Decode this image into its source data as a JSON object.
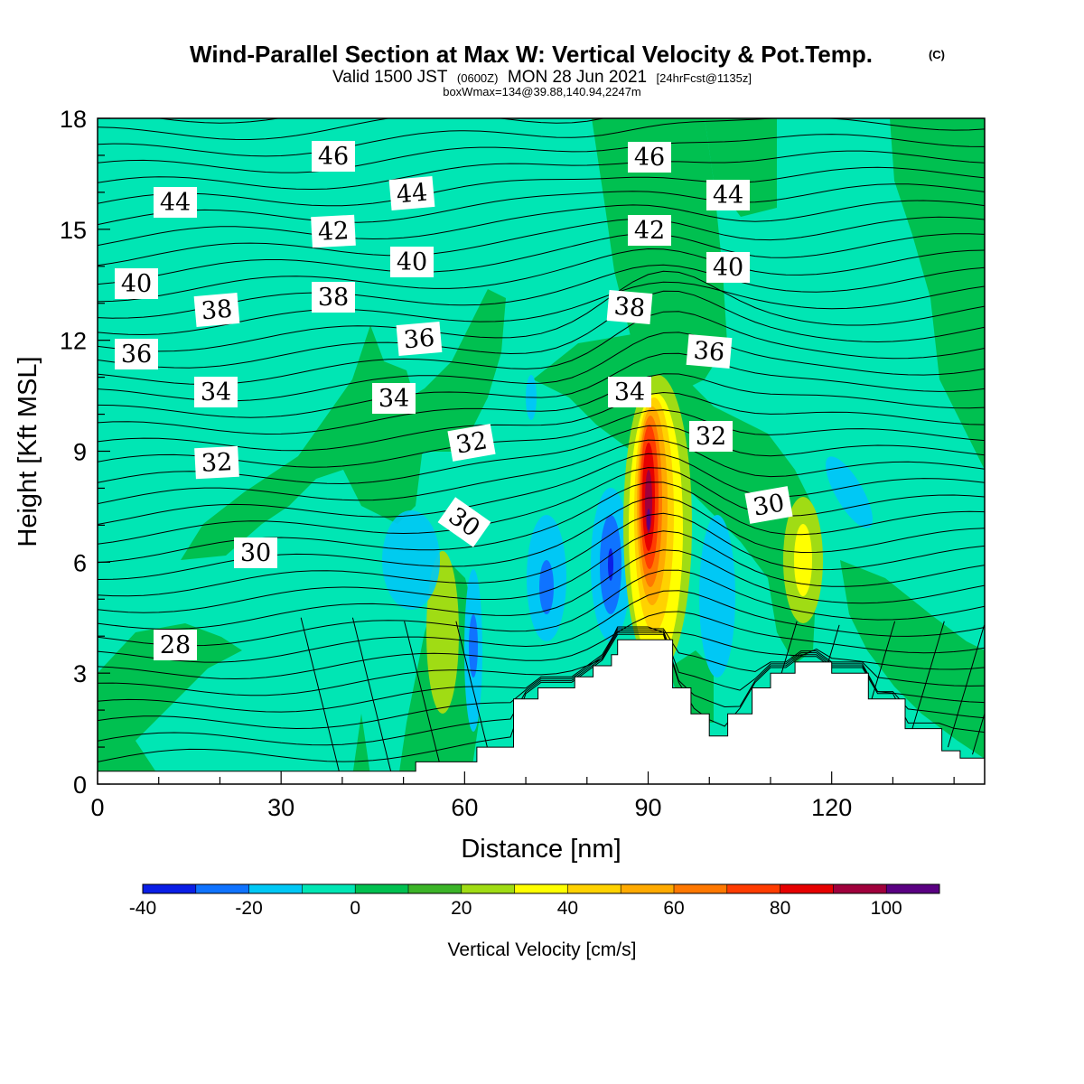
{
  "chart_data": {
    "type": "contour",
    "title": "Wind-Parallel Section at Max W: Vertical Velocity & Pot.Temp.",
    "title_mark": "(C)",
    "subtitle": {
      "valid": "Valid 1500 JST",
      "utc": "(0600Z)",
      "date": "MON 28 Jun 2021",
      "fcst": "[24hrFcst@1135z]"
    },
    "subtitle2": "boxWmax=134@39.88,140.94,2247m",
    "xlabel": "Distance [nm]",
    "ylabel": "Height [Kft MSL]",
    "xlim": [
      0,
      145
    ],
    "ylim": [
      0,
      18
    ],
    "x_ticks": [
      "0",
      "30",
      "60",
      "90",
      "120"
    ],
    "y_ticks": [
      "0",
      "3",
      "6",
      "9",
      "12",
      "15",
      "18"
    ],
    "colorbar": {
      "label": "Vertical Velocity [cm/s]",
      "tick_labels": [
        "-40",
        "-20",
        "0",
        "20",
        "40",
        "60",
        "80",
        "100"
      ],
      "colors": [
        "#0a1ee6",
        "#0f73ff",
        "#00c8f5",
        "#00e6b4",
        "#00c050",
        "#3cb428",
        "#a0dc14",
        "#ffff00",
        "#ffd200",
        "#ffaa00",
        "#ff7800",
        "#ff3c00",
        "#e60000",
        "#a0003c",
        "#5a0082"
      ]
    },
    "theta_contour_labels": [
      "28",
      "30",
      "30",
      "30",
      "32",
      "32",
      "32",
      "34",
      "34",
      "34",
      "36",
      "36",
      "36",
      "38",
      "38",
      "38",
      "40",
      "40",
      "40",
      "42",
      "42",
      "44",
      "44",
      "44",
      "46",
      "46"
    ],
    "terrain_profile": [
      [
        0,
        0.35
      ],
      [
        52,
        0.35
      ],
      [
        52,
        0.6
      ],
      [
        62,
        0.6
      ],
      [
        62,
        1.0
      ],
      [
        68,
        1.0
      ],
      [
        68,
        2.3
      ],
      [
        72,
        2.3
      ],
      [
        72,
        2.6
      ],
      [
        78,
        2.6
      ],
      [
        78,
        2.9
      ],
      [
        81,
        2.9
      ],
      [
        81,
        3.2
      ],
      [
        84,
        3.2
      ],
      [
        84,
        3.5
      ],
      [
        85,
        3.5
      ],
      [
        85,
        3.9
      ],
      [
        94,
        3.9
      ],
      [
        94,
        2.6
      ],
      [
        97,
        2.6
      ],
      [
        97,
        1.9
      ],
      [
        100,
        1.9
      ],
      [
        100,
        1.3
      ],
      [
        103,
        1.3
      ],
      [
        103,
        1.9
      ],
      [
        107,
        1.9
      ],
      [
        107,
        2.6
      ],
      [
        110,
        2.6
      ],
      [
        110,
        3.0
      ],
      [
        114,
        3.0
      ],
      [
        114,
        3.3
      ],
      [
        120,
        3.3
      ],
      [
        120,
        3.0
      ],
      [
        126,
        3.0
      ],
      [
        126,
        2.3
      ],
      [
        132,
        2.3
      ],
      [
        132,
        1.5
      ],
      [
        138,
        1.5
      ],
      [
        138,
        0.9
      ],
      [
        141,
        0.9
      ],
      [
        141,
        0.7
      ],
      [
        145,
        0.7
      ]
    ],
    "w_features_cm_s": [
      {
        "x": 91,
        "z": 7.5,
        "w_max": 100,
        "feature": "updraft"
      },
      {
        "x": 116,
        "z": 6.0,
        "w_max": 40,
        "feature": "updraft"
      },
      {
        "x": 57,
        "z": 4.5,
        "w_max": 30,
        "feature": "updraft"
      },
      {
        "x": 84,
        "z": 6.0,
        "w_min": -40,
        "feature": "downdraft"
      },
      {
        "x": 74,
        "z": 5.0,
        "w_min": -30,
        "feature": "downdraft"
      },
      {
        "x": 62,
        "z": 3.8,
        "w_min": -30,
        "feature": "downdraft"
      },
      {
        "x": 101,
        "z": 5.5,
        "w_min": -10,
        "feature": "downdraft"
      }
    ]
  }
}
